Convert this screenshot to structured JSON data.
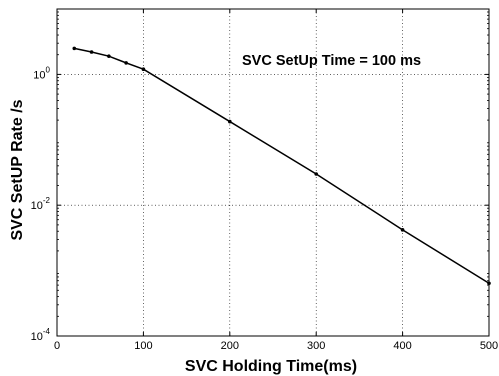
{
  "chart_data": {
    "type": "line",
    "title": "",
    "xlabel": "SVC Holding Time(ms)",
    "ylabel": "SVC SetUP Rate /s",
    "annotation": "SVC SetUp Time = 100 ms",
    "x_scale": "linear",
    "y_scale": "log",
    "xlim": [
      0,
      500
    ],
    "ylim": [
      0.0001,
      10
    ],
    "x_ticks": [
      0,
      100,
      200,
      300,
      400,
      500
    ],
    "x_tick_labels": [
      "0",
      "100",
      "200",
      "300",
      "400",
      "500"
    ],
    "y_ticks": [
      0.0001,
      0.01,
      1
    ],
    "y_tick_labels": [
      {
        "base": "10",
        "exp": "-4"
      },
      {
        "base": "10",
        "exp": "-2"
      },
      {
        "base": "10",
        "exp": "0"
      }
    ],
    "grid": true,
    "grid_style": "dotted",
    "line_color": "#000000",
    "series": [
      {
        "x": [
          20,
          40,
          60,
          80,
          100,
          200,
          300,
          400,
          500
        ],
        "y": [
          2.5,
          2.2,
          1.9,
          1.5,
          1.2,
          0.19,
          0.03,
          0.0042,
          0.00064
        ]
      }
    ]
  }
}
